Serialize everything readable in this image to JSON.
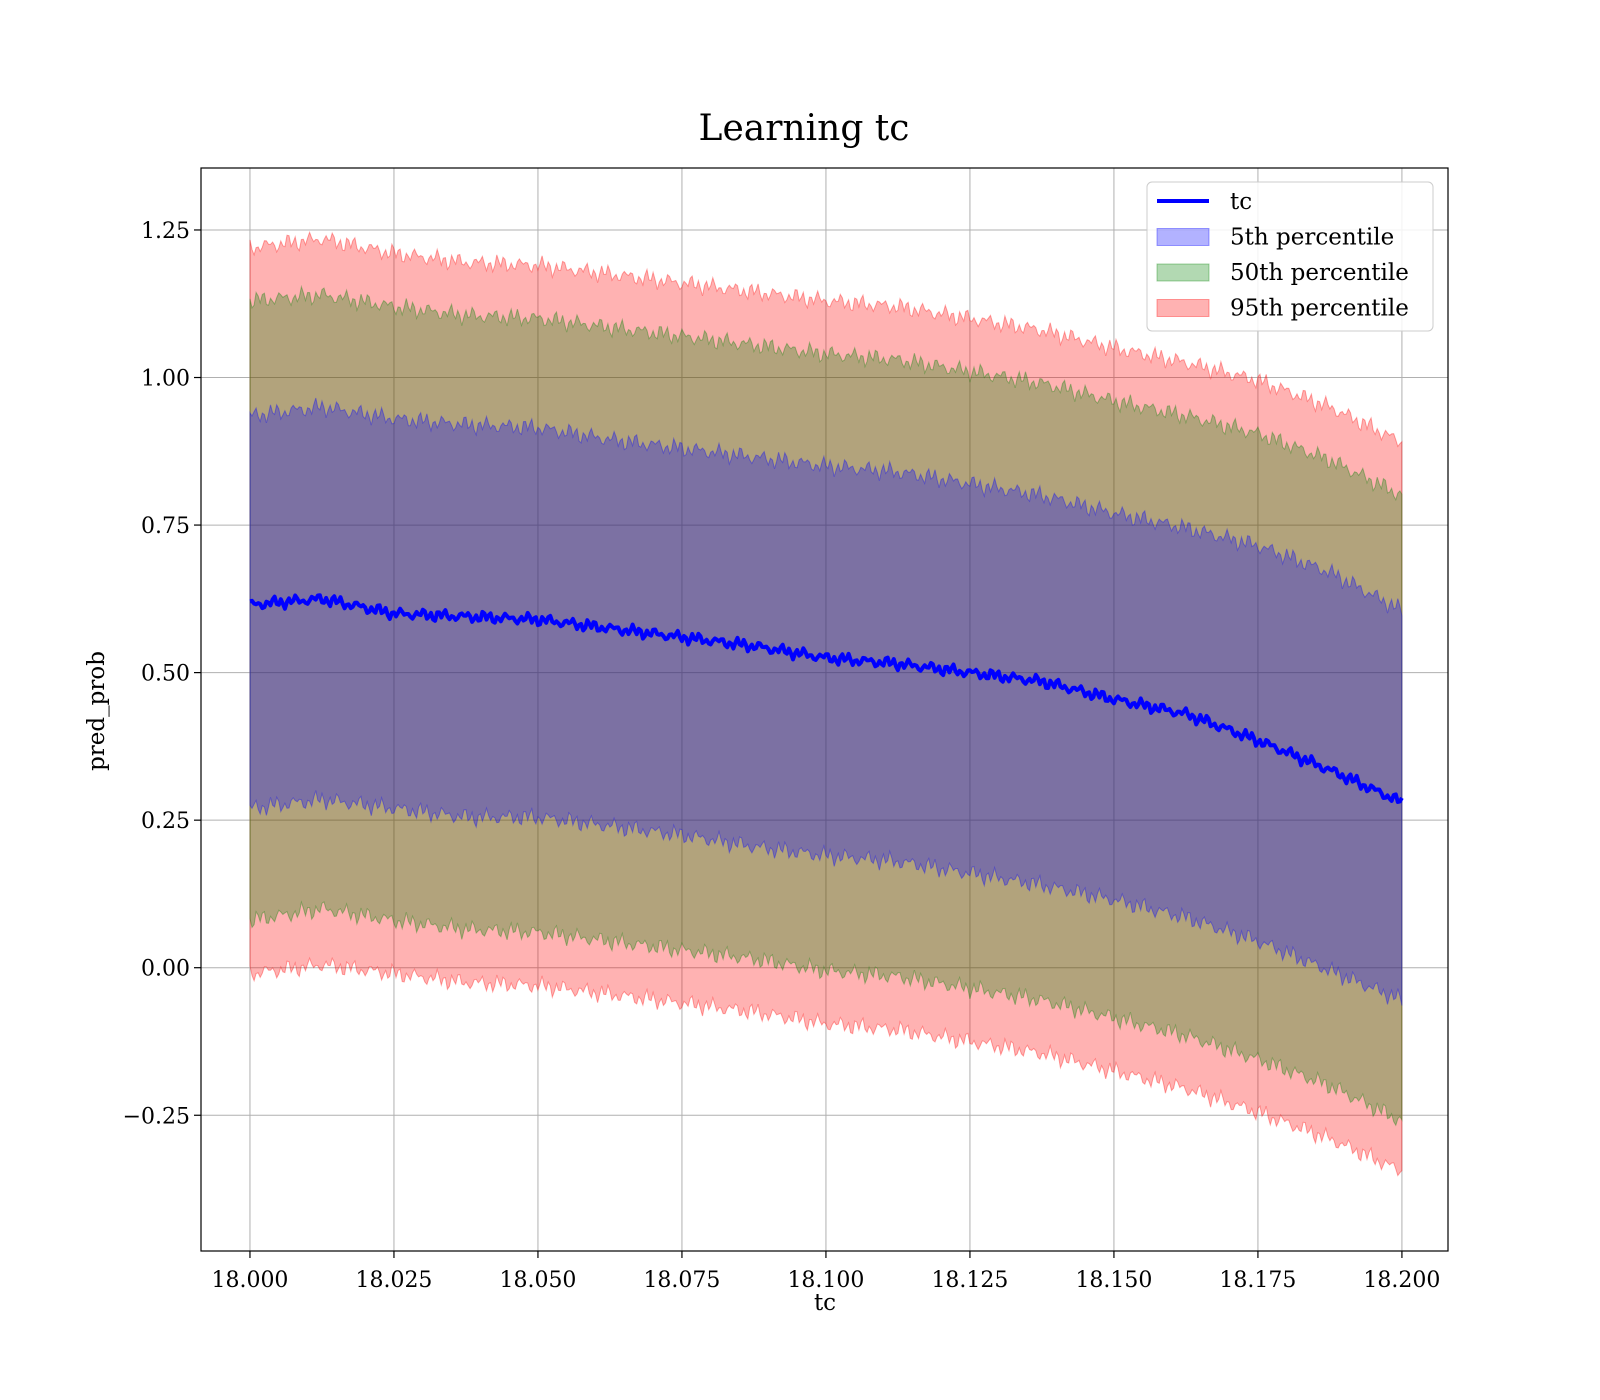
{
  "chart_data": {
    "type": "area",
    "title": "Learning tc",
    "xlabel": "tc",
    "ylabel": "pred_prob",
    "xlim": [
      17.9915,
      18.208
    ],
    "ylim": [
      -0.48,
      1.355
    ],
    "grid": true,
    "legend_position": "upper right",
    "x_ticks": [
      18.0,
      18.025,
      18.05,
      18.075,
      18.1,
      18.125,
      18.15,
      18.175,
      18.2
    ],
    "x_tick_labels": [
      "18.000",
      "18.025",
      "18.050",
      "18.075",
      "18.100",
      "18.125",
      "18.150",
      "18.175",
      "18.200"
    ],
    "y_ticks": [
      -0.25,
      0.0,
      0.25,
      0.5,
      0.75,
      1.0,
      1.25
    ],
    "y_tick_labels": [
      "−0.25",
      "0.00",
      "0.25",
      "0.50",
      "0.75",
      "1.00",
      "1.25"
    ],
    "x": [
      18.0,
      18.0125,
      18.025,
      18.0375,
      18.05,
      18.0625,
      18.075,
      18.0875,
      18.1,
      18.1125,
      18.125,
      18.1375,
      18.15,
      18.1625,
      18.175,
      18.1875,
      18.2
    ],
    "series": [
      {
        "name": "tc",
        "kind": "line",
        "color": "#0000ff",
        "values": [
          0.615,
          0.625,
          0.6,
          0.595,
          0.59,
          0.575,
          0.56,
          0.545,
          0.525,
          0.515,
          0.5,
          0.485,
          0.455,
          0.43,
          0.385,
          0.335,
          0.28
        ]
      },
      {
        "name": "5th percentile",
        "kind": "band",
        "color": "#0000ff",
        "lower": [
          0.27,
          0.285,
          0.27,
          0.255,
          0.255,
          0.24,
          0.225,
          0.205,
          0.19,
          0.18,
          0.16,
          0.14,
          0.115,
          0.085,
          0.045,
          -0.005,
          -0.055
        ],
        "upper": [
          0.935,
          0.95,
          0.93,
          0.92,
          0.915,
          0.895,
          0.88,
          0.865,
          0.85,
          0.84,
          0.82,
          0.8,
          0.77,
          0.745,
          0.715,
          0.67,
          0.605
        ]
      },
      {
        "name": "50th percentile",
        "kind": "band",
        "color": "#008000",
        "lower": [
          0.08,
          0.1,
          0.08,
          0.065,
          0.06,
          0.045,
          0.03,
          0.015,
          -0.005,
          -0.015,
          -0.035,
          -0.055,
          -0.085,
          -0.115,
          -0.155,
          -0.2,
          -0.26
        ],
        "upper": [
          1.13,
          1.14,
          1.12,
          1.105,
          1.1,
          1.085,
          1.07,
          1.055,
          1.04,
          1.03,
          1.01,
          0.99,
          0.96,
          0.935,
          0.905,
          0.86,
          0.8
        ]
      },
      {
        "name": "95th percentile",
        "kind": "band",
        "color": "#ff0000",
        "lower": [
          -0.01,
          0.005,
          -0.01,
          -0.025,
          -0.03,
          -0.045,
          -0.06,
          -0.075,
          -0.095,
          -0.105,
          -0.125,
          -0.145,
          -0.175,
          -0.205,
          -0.245,
          -0.29,
          -0.345
        ],
        "upper": [
          1.22,
          1.235,
          1.21,
          1.195,
          1.19,
          1.175,
          1.16,
          1.145,
          1.13,
          1.12,
          1.1,
          1.08,
          1.05,
          1.025,
          0.995,
          0.95,
          0.89
        ]
      }
    ]
  }
}
